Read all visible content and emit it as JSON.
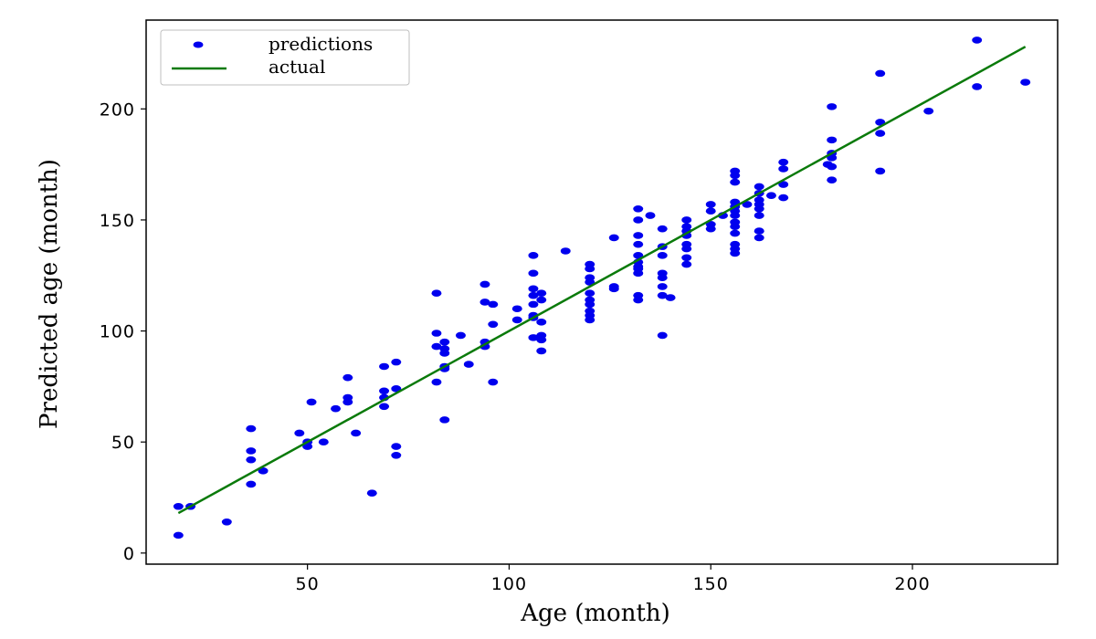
{
  "chart_data": {
    "type": "scatter",
    "xlabel": "Age (month)",
    "ylabel": "Predicted age (month)",
    "xlim": [
      10,
      236
    ],
    "ylim": [
      -5,
      240
    ],
    "x_ticks": [
      50,
      100,
      150,
      200
    ],
    "y_ticks": [
      0,
      50,
      100,
      150,
      200
    ],
    "grid": false,
    "legend": {
      "placement": "top-left",
      "entries": [
        "predictions",
        "actual"
      ]
    },
    "series": [
      {
        "name": "predictions",
        "kind": "scatter",
        "color": "#0000ee",
        "points": [
          [
            18,
            8
          ],
          [
            18,
            21
          ],
          [
            21,
            21
          ],
          [
            30,
            14
          ],
          [
            36,
            56
          ],
          [
            36,
            46
          ],
          [
            36,
            42
          ],
          [
            36,
            31
          ],
          [
            39,
            37
          ],
          [
            48,
            54
          ],
          [
            50,
            50
          ],
          [
            50,
            48
          ],
          [
            51,
            68
          ],
          [
            54,
            50
          ],
          [
            57,
            65
          ],
          [
            60,
            79
          ],
          [
            60,
            70
          ],
          [
            60,
            68
          ],
          [
            62,
            54
          ],
          [
            66,
            27
          ],
          [
            69,
            84
          ],
          [
            69,
            73
          ],
          [
            69,
            70
          ],
          [
            69,
            66
          ],
          [
            72,
            86
          ],
          [
            72,
            74
          ],
          [
            72,
            48
          ],
          [
            72,
            44
          ],
          [
            82,
            117
          ],
          [
            82,
            99
          ],
          [
            82,
            93
          ],
          [
            82,
            77
          ],
          [
            84,
            95
          ],
          [
            84,
            92
          ],
          [
            84,
            90
          ],
          [
            84,
            84
          ],
          [
            84,
            83
          ],
          [
            84,
            60
          ],
          [
            88,
            98
          ],
          [
            90,
            85
          ],
          [
            94,
            121
          ],
          [
            94,
            113
          ],
          [
            94,
            95
          ],
          [
            94,
            93
          ],
          [
            96,
            112
          ],
          [
            96,
            103
          ],
          [
            96,
            77
          ],
          [
            102,
            110
          ],
          [
            102,
            105
          ],
          [
            106,
            134
          ],
          [
            106,
            126
          ],
          [
            106,
            119
          ],
          [
            106,
            116
          ],
          [
            106,
            112
          ],
          [
            106,
            107
          ],
          [
            106,
            106
          ],
          [
            106,
            97
          ],
          [
            108,
            117
          ],
          [
            108,
            114
          ],
          [
            108,
            104
          ],
          [
            108,
            98
          ],
          [
            108,
            96
          ],
          [
            108,
            91
          ],
          [
            114,
            136
          ],
          [
            120,
            130
          ],
          [
            120,
            128
          ],
          [
            120,
            124
          ],
          [
            120,
            122
          ],
          [
            120,
            117
          ],
          [
            120,
            114
          ],
          [
            120,
            112
          ],
          [
            120,
            109
          ],
          [
            120,
            107
          ],
          [
            120,
            105
          ],
          [
            126,
            142
          ],
          [
            126,
            120
          ],
          [
            126,
            119
          ],
          [
            132,
            155
          ],
          [
            132,
            150
          ],
          [
            132,
            143
          ],
          [
            132,
            139
          ],
          [
            132,
            134
          ],
          [
            132,
            131
          ],
          [
            132,
            129
          ],
          [
            132,
            128
          ],
          [
            132,
            126
          ],
          [
            132,
            116
          ],
          [
            132,
            114
          ],
          [
            135,
            152
          ],
          [
            138,
            146
          ],
          [
            138,
            138
          ],
          [
            138,
            134
          ],
          [
            138,
            126
          ],
          [
            138,
            124
          ],
          [
            138,
            120
          ],
          [
            138,
            116
          ],
          [
            138,
            98
          ],
          [
            140,
            115
          ],
          [
            144,
            150
          ],
          [
            144,
            147
          ],
          [
            144,
            145
          ],
          [
            144,
            143
          ],
          [
            144,
            139
          ],
          [
            144,
            137
          ],
          [
            144,
            133
          ],
          [
            144,
            130
          ],
          [
            150,
            157
          ],
          [
            150,
            154
          ],
          [
            150,
            148
          ],
          [
            150,
            146
          ],
          [
            153,
            152
          ],
          [
            156,
            172
          ],
          [
            156,
            170
          ],
          [
            156,
            167
          ],
          [
            156,
            158
          ],
          [
            156,
            156
          ],
          [
            156,
            154
          ],
          [
            156,
            152
          ],
          [
            156,
            149
          ],
          [
            156,
            147
          ],
          [
            156,
            144
          ],
          [
            156,
            139
          ],
          [
            156,
            137
          ],
          [
            156,
            135
          ],
          [
            159,
            157
          ],
          [
            162,
            165
          ],
          [
            162,
            162
          ],
          [
            162,
            159
          ],
          [
            162,
            157
          ],
          [
            162,
            155
          ],
          [
            162,
            152
          ],
          [
            162,
            145
          ],
          [
            162,
            142
          ],
          [
            165,
            161
          ],
          [
            168,
            176
          ],
          [
            168,
            173
          ],
          [
            168,
            166
          ],
          [
            168,
            160
          ],
          [
            179,
            175
          ],
          [
            180,
            201
          ],
          [
            180,
            186
          ],
          [
            180,
            180
          ],
          [
            180,
            178
          ],
          [
            180,
            174
          ],
          [
            180,
            168
          ],
          [
            192,
            216
          ],
          [
            192,
            194
          ],
          [
            192,
            189
          ],
          [
            192,
            172
          ],
          [
            204,
            199
          ],
          [
            216,
            231
          ],
          [
            216,
            210
          ],
          [
            228,
            212
          ]
        ]
      },
      {
        "name": "actual",
        "kind": "line",
        "color": "#0a7a0a",
        "points": [
          [
            18,
            18
          ],
          [
            228,
            228
          ]
        ]
      }
    ]
  }
}
